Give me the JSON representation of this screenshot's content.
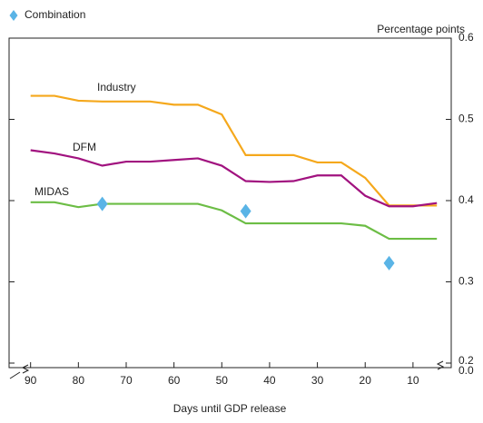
{
  "chart_data": {
    "type": "line",
    "y_unit_label": "Percentage points",
    "xlabel": "Days until GDP release",
    "x": [
      90,
      85,
      80,
      75,
      70,
      65,
      60,
      55,
      50,
      45,
      40,
      35,
      30,
      25,
      20,
      15,
      10,
      5
    ],
    "series": [
      {
        "name": "Industry",
        "color": "#f5a81c",
        "values": [
          0.529,
          0.529,
          0.523,
          0.522,
          0.522,
          0.522,
          0.518,
          0.518,
          0.506,
          0.456,
          0.456,
          0.456,
          0.447,
          0.447,
          0.428,
          0.394,
          0.394,
          0.394
        ]
      },
      {
        "name": "DFM",
        "color": "#a1127f",
        "values": [
          0.462,
          0.458,
          0.452,
          0.443,
          0.448,
          0.448,
          0.45,
          0.452,
          0.443,
          0.424,
          0.423,
          0.424,
          0.431,
          0.431,
          0.406,
          0.393,
          0.393,
          0.397
        ]
      },
      {
        "name": "MIDAS",
        "color": "#6cbd45",
        "values": [
          0.398,
          0.398,
          0.392,
          0.396,
          0.396,
          0.396,
          0.396,
          0.396,
          0.388,
          0.372,
          0.372,
          0.372,
          0.372,
          0.372,
          0.369,
          0.353,
          0.353,
          0.353
        ]
      }
    ],
    "points": {
      "name": "Combination",
      "color": "#5ab4e6",
      "x": [
        75,
        45,
        15
      ],
      "values": [
        0.396,
        0.387,
        0.323
      ]
    },
    "xlim": [
      94.5,
      2
    ],
    "xticks": [
      90,
      80,
      70,
      60,
      50,
      40,
      30,
      20,
      10
    ],
    "ylim": [
      0.2,
      0.6
    ],
    "yticks": [
      0.2,
      0.3,
      0.4,
      0.5,
      0.6
    ],
    "axis_break_label": "0.0"
  }
}
